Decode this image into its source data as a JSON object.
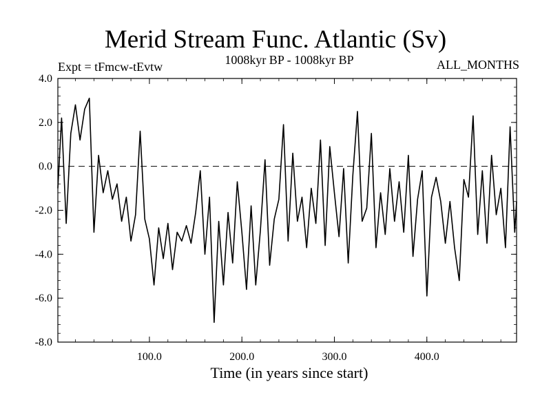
{
  "chart_data": {
    "type": "line",
    "title": "Merid Stream Func. Atlantic (Sv)",
    "subtitle_left": "Expt = tFmcw-tEvtw",
    "subtitle_center": "1008kyr BP - 1008kyr BP",
    "subtitle_right": "ALL_MONTHS",
    "xlabel": "Time (in years since start)",
    "ylabel": "",
    "xlim": [
      1,
      497
    ],
    "ylim": [
      -8.0,
      4.0
    ],
    "x_ticks": [
      100,
      200,
      300,
      400
    ],
    "x_tick_labels": [
      "100.0",
      "200.0",
      "300.0",
      "400.0"
    ],
    "y_ticks": [
      4,
      2,
      0,
      -2,
      -4,
      -6,
      -8
    ],
    "y_tick_labels": [
      "4.0",
      "2.0",
      "0.0",
      "-2.0",
      "-4.0",
      "-6.0",
      "-8.0"
    ],
    "reference_line": {
      "y": 0,
      "style": "dashed"
    },
    "grid": false,
    "series": [
      {
        "name": "Merid Stream Func. Atlantic",
        "x": [
          1,
          5,
          10,
          15,
          20,
          25,
          30,
          35,
          40,
          45,
          50,
          55,
          60,
          65,
          70,
          75,
          80,
          85,
          90,
          95,
          100,
          105,
          110,
          115,
          120,
          125,
          130,
          135,
          140,
          145,
          150,
          155,
          160,
          165,
          170,
          175,
          180,
          185,
          190,
          195,
          200,
          205,
          210,
          215,
          220,
          225,
          230,
          235,
          240,
          245,
          250,
          255,
          260,
          265,
          270,
          275,
          280,
          285,
          290,
          295,
          300,
          305,
          310,
          315,
          320,
          325,
          330,
          335,
          340,
          345,
          350,
          355,
          360,
          365,
          370,
          375,
          380,
          385,
          390,
          395,
          400,
          405,
          410,
          415,
          420,
          425,
          430,
          435,
          440,
          445,
          450,
          455,
          460,
          465,
          470,
          475,
          480,
          485,
          490,
          495,
          497
        ],
        "values": [
          -1.0,
          2.2,
          -2.6,
          1.5,
          2.8,
          1.2,
          2.6,
          3.1,
          -3.0,
          0.5,
          -1.2,
          -0.2,
          -1.5,
          -0.8,
          -2.5,
          -1.4,
          -3.4,
          -2.2,
          1.6,
          -2.4,
          -3.3,
          -5.4,
          -2.8,
          -4.2,
          -2.6,
          -4.7,
          -3.0,
          -3.4,
          -2.7,
          -3.5,
          -2.1,
          -0.2,
          -4.0,
          -1.4,
          -7.1,
          -2.5,
          -5.4,
          -2.1,
          -4.4,
          -0.7,
          -3.0,
          -5.6,
          -1.8,
          -5.4,
          -2.9,
          0.3,
          -4.5,
          -2.4,
          -1.5,
          1.9,
          -3.4,
          0.6,
          -2.5,
          -1.4,
          -3.7,
          -1.0,
          -2.6,
          1.2,
          -3.6,
          0.9,
          -1.2,
          -3.2,
          -0.1,
          -4.4,
          -0.4,
          2.5,
          -2.5,
          -1.9,
          1.5,
          -3.7,
          -1.2,
          -3.1,
          -0.1,
          -2.5,
          -0.7,
          -3.0,
          0.5,
          -4.1,
          -1.5,
          -0.2,
          -5.9,
          -1.4,
          -0.5,
          -1.6,
          -3.5,
          -1.6,
          -3.7,
          -5.2,
          -0.6,
          -1.4,
          2.3,
          -3.1,
          -0.2,
          -3.5,
          0.5,
          -2.2,
          -1.0,
          -3.7,
          1.8,
          -3.0,
          -1.6
        ]
      }
    ]
  }
}
